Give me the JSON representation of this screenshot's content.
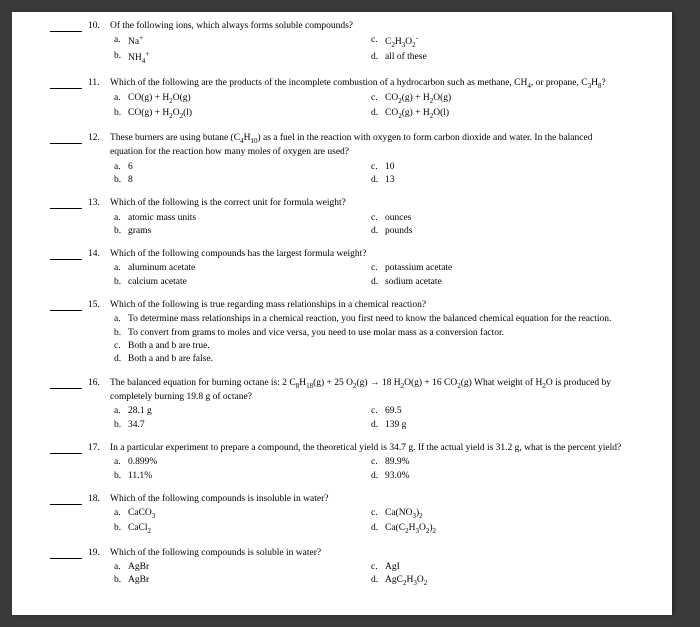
{
  "page": {
    "background_color": "#3a3a3a",
    "paper_color": "#ffffff",
    "font_family": "Times New Roman",
    "base_fontsize": 9.5
  },
  "questions": [
    {
      "number": "10.",
      "stem": "Of the following ions, which always forms soluble compounds?",
      "layout": "two-col",
      "choices": {
        "a": "Na⁺",
        "b": "NH₄⁺",
        "c": "C₂H₃O₂⁻",
        "d": "all of these"
      }
    },
    {
      "number": "11.",
      "stem": "Which of the following are the products of the incomplete combustion of a hydrocarbon such as methane, CH₄, or propane, C₃H₈?",
      "layout": "two-col",
      "choices": {
        "a": "CO(g) + H₂O(g)",
        "b": "CO(g) + H₂O₂(l)",
        "c": "CO₂(g) + H₂O(g)",
        "d": "CO₂(g) + H₂O(l)"
      }
    },
    {
      "number": "12.",
      "stem": "These burners are using butane (C₄H₁₀) as a fuel in the reaction with oxygen to form carbon dioxide and water.  In the balanced equation for the reaction how many moles of oxygen are used?",
      "layout": "two-col",
      "choices": {
        "a": "6",
        "b": "8",
        "c": "10",
        "d": "13"
      }
    },
    {
      "number": "13.",
      "stem": "Which of the following is the correct unit for formula weight?",
      "layout": "two-col",
      "choices": {
        "a": "atomic mass units",
        "b": "grams",
        "c": "ounces",
        "d": "pounds"
      }
    },
    {
      "number": "14.",
      "stem": "Which of the following compounds has the largest formula weight?",
      "layout": "two-col",
      "choices": {
        "a": "aluminum acetate",
        "b": "calcium acetate",
        "c": "potassium acetate",
        "d": "sodium acetate"
      }
    },
    {
      "number": "15.",
      "stem": "Which of the following is true regarding mass relationships in a chemical reaction?",
      "layout": "full",
      "choices": {
        "a": "To determine mass relationships in a chemical reaction, you first need to know the balanced chemical equation for the reaction.",
        "b": "To convert from grams to moles and vice versa, you need to use molar mass as a conversion factor.",
        "c": "Both a and b are true.",
        "d": "Both a and b are false."
      }
    },
    {
      "number": "16.",
      "stem": "The balanced equation for burning octane is: 2 C₈H₁₈(g)  +  25 O₂(g)  →  18 H₂O(g)  +  16 CO₂(g) What weight of H₂O is produced by completely burning 19.8 g of octane?",
      "layout": "two-col",
      "choices": {
        "a": "28.1 g",
        "b": "34.7",
        "c": "69.5",
        "d": "139 g"
      }
    },
    {
      "number": "17.",
      "stem": "In a particular experiment to prepare a compound, the theoretical yield is 34.7 g.  If the actual yield is 31.2 g, what is the percent yield?",
      "layout": "two-col",
      "choices": {
        "a": "0.899%",
        "b": "11.1%",
        "c": "89.9%",
        "d": "93.0%"
      }
    },
    {
      "number": "18.",
      "stem": "Which of the following compounds is insoluble in water?",
      "layout": "two-col",
      "choices": {
        "a": "CaCO₃",
        "b": "CaCl₂",
        "c": "Ca(NO₃)₂",
        "d": "Ca(C₂H₃O₂)₂"
      }
    },
    {
      "number": "19.",
      "stem": "Which of the following compounds is soluble in water?",
      "layout": "two-col",
      "choices": {
        "a": "AgBr",
        "b": "AgBr",
        "c": "AgI",
        "d": "AgC₂H₃O₂"
      }
    }
  ]
}
